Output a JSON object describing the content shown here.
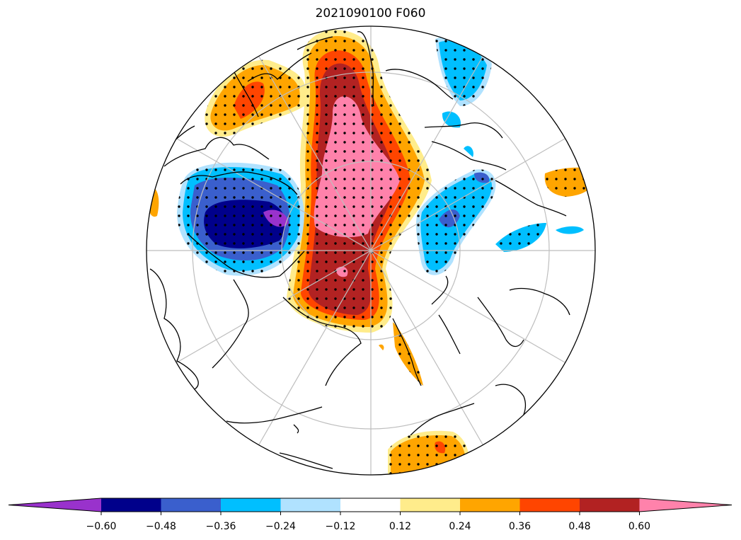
{
  "title": "2021090100 F060",
  "colorbar": {
    "extend": "both",
    "colors": [
      "#9932cc",
      "#00008b",
      "#3a5fcd",
      "#00bfff",
      "#b0e2ff",
      "#ffffff",
      "#ffec8b",
      "#ffa500",
      "#ff4500",
      "#b22222",
      "#ff82ab"
    ],
    "tick_labels": [
      "−0.60",
      "−0.48",
      "−0.36",
      "−0.24",
      "−0.12",
      "0.12",
      "0.24",
      "0.36",
      "0.48",
      "0.60"
    ]
  },
  "map": {
    "projection": "north-polar-stereographic",
    "graticule_color": "#bebebe",
    "coastline_color": "#000000",
    "stipple": "dots"
  }
}
